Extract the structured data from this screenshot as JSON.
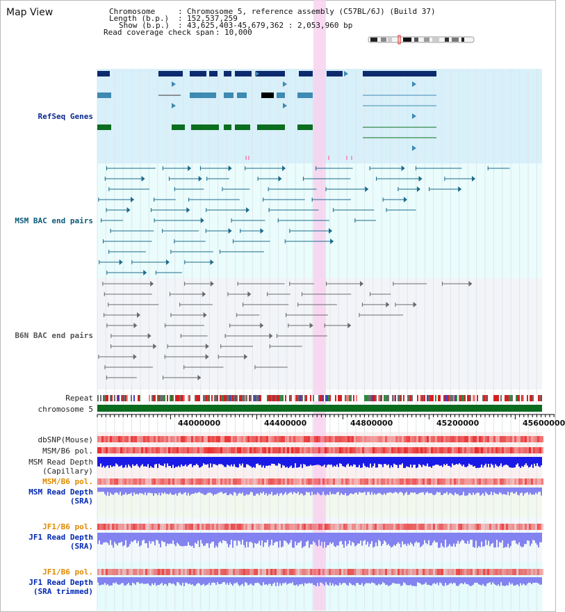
{
  "header": {
    "title": "Map View",
    "chromosome_label": "Chromosome",
    "chromosome_value": "Chromosome 5, reference assembly (C57BL/6J) (Build 37)",
    "length_label": "Length (b.p.)",
    "length_value": "152,537,259",
    "show_label": "Show (b.p.)",
    "show_value": "43,625,403-45,679,362 : 2,053,960 bp",
    "coverage_label": "Read coverage check span",
    "coverage_value": "10,000"
  },
  "tracks": {
    "refseq": "RefSeq Genes",
    "msm_bac": "MSM BAC end pairs",
    "b6n_bac": "B6N BAC end pairs",
    "repeat": "Repeat",
    "chromosome": "chromosome 5",
    "dbsnp": "dbSNP(Mouse)",
    "msm_b6_pol": "MSM/B6 pol.",
    "msm_depth_cap_1": "MSM Read Depth",
    "msm_depth_cap_2": "(Capillary)",
    "msm_b6_pol_sra": "MSM/B6 pol.",
    "msm_depth_sra_1": "MSM Read Depth",
    "msm_depth_sra_2": "(SRA)",
    "jf1_b6_pol": "JF1/B6 pol.",
    "jf1_depth_1": "JF1 Read Depth",
    "jf1_depth_2": "(SRA)",
    "jf1_b6_pol_trim": "JF1/B6 pol.",
    "jf1_trim_1": "JF1 Read Depth",
    "jf1_trim_2": "(SRA trimmed)"
  },
  "axis": {
    "ticks": [
      "44000000",
      "44400000",
      "44800000",
      "45200000",
      "45600000"
    ]
  },
  "colors": {
    "refseq_bg": "#d8f0fa",
    "bac_bg": "#eafcfc",
    "b6n_bg": "#f3f4f8",
    "highlight": "#f7d2ee",
    "gene_dark": "#0d2a6e",
    "gene_mid": "#3e8ab2",
    "gene_green": "#0a6e1e",
    "bac_teal": "#1b6a8a",
    "bac_grey": "#6a6a6a",
    "chrom_green": "#0b6b1e",
    "snp_red": "#f07070",
    "depth_blue": "#1a1ae6",
    "depth_light": "#8282f0"
  }
}
